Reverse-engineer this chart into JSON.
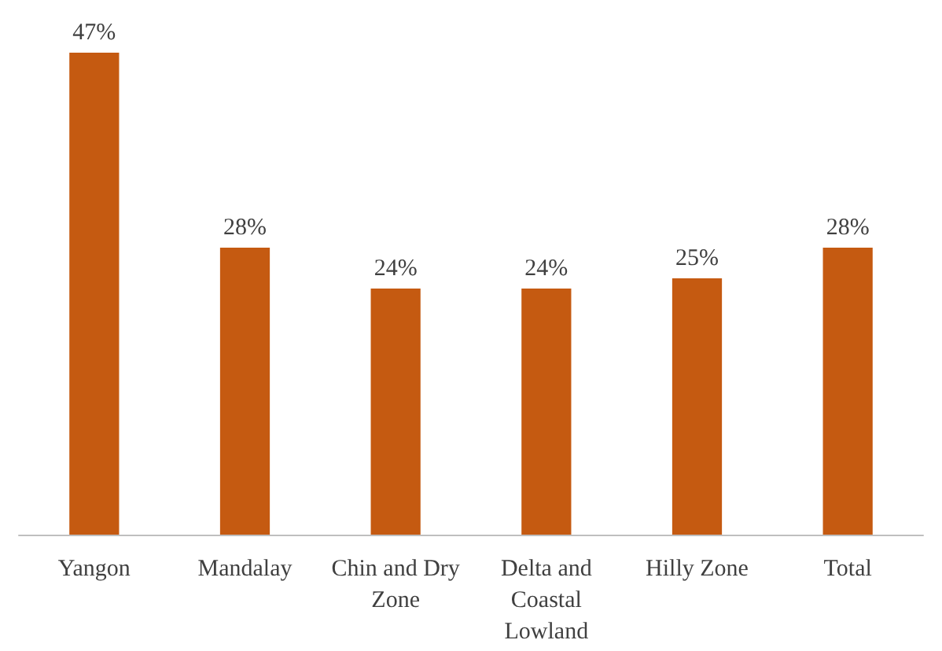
{
  "chart_data": {
    "type": "bar",
    "categories": [
      "Yangon",
      "Mandalay",
      "Chin and Dry Zone",
      "Delta and Coastal Lowland",
      "Hilly Zone",
      "Total"
    ],
    "values": [
      47,
      28,
      24,
      24,
      25,
      28
    ],
    "value_labels": [
      "47%",
      "28%",
      "24%",
      "24%",
      "25%",
      "28%"
    ],
    "color": "#c55a11"
  }
}
